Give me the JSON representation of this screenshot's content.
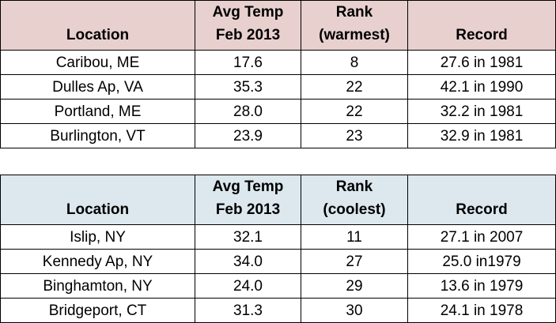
{
  "tables": [
    {
      "header": [
        [
          "Location"
        ],
        [
          "Avg Temp",
          "Feb 2013"
        ],
        [
          "Rank",
          "(warmest)"
        ],
        [
          "Record"
        ]
      ],
      "rows": [
        [
          "Caribou, ME",
          "17.6",
          "8",
          "27.6 in 1981"
        ],
        [
          "Dulles Ap, VA",
          "35.3",
          "22",
          "42.1 in 1990"
        ],
        [
          "Portland, ME",
          "28.0",
          "22",
          "32.2 in 1981"
        ],
        [
          "Burlington, VT",
          "23.9",
          "23",
          "32.9 in 1981"
        ]
      ]
    },
    {
      "header": [
        [
          "Location"
        ],
        [
          "Avg Temp",
          "Feb 2013"
        ],
        [
          "Rank",
          "(coolest)"
        ],
        [
          "Record"
        ]
      ],
      "rows": [
        [
          "Islip, NY",
          "32.1",
          "11",
          "27.1 in 2007"
        ],
        [
          "Kennedy Ap, NY",
          "34.0",
          "27",
          "25.0 in1979"
        ],
        [
          "Binghamton, NY",
          "24.0",
          "29",
          "13.6 in 1979"
        ],
        [
          "Bridgeport, CT",
          "31.3",
          "30",
          "24.1 in 1978"
        ]
      ]
    }
  ]
}
